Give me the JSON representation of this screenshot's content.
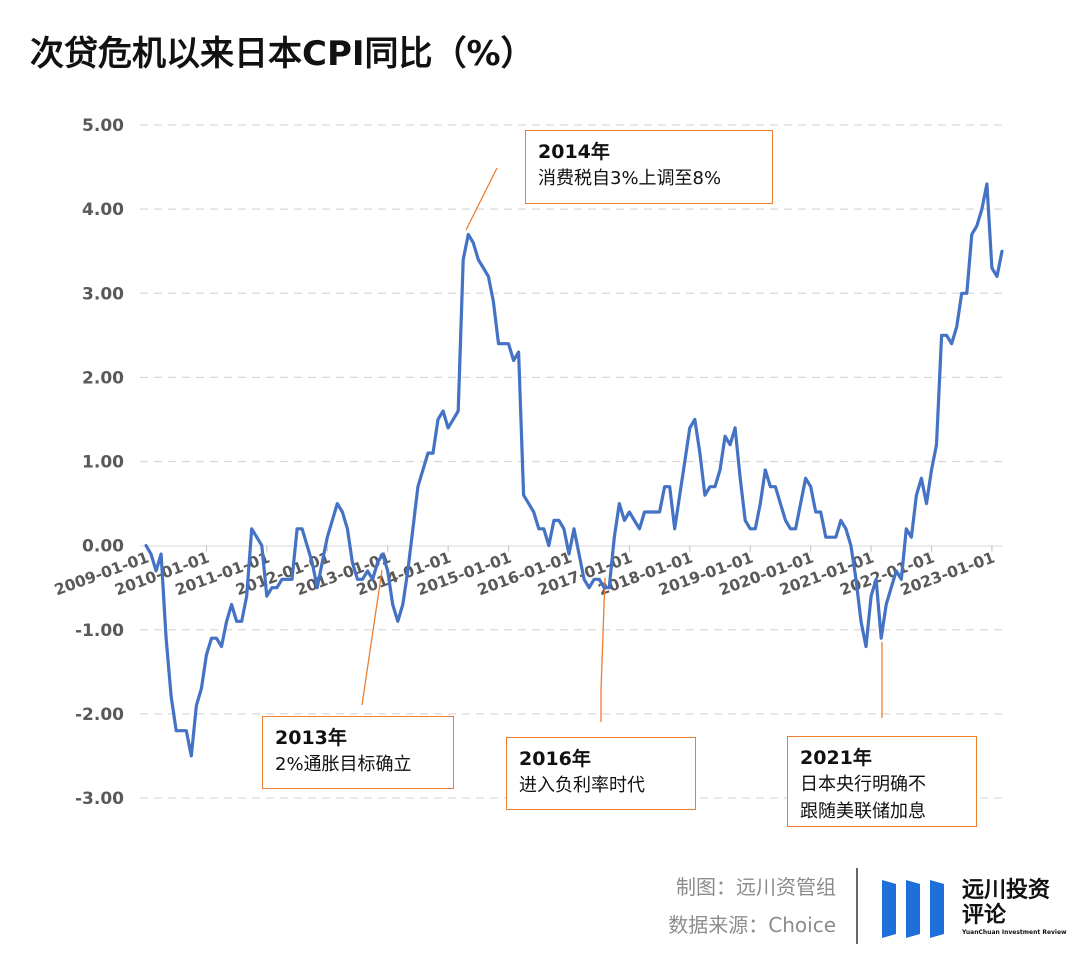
{
  "title": "次贷危机以来日本CPI同比（%）",
  "chart_data": {
    "type": "line",
    "title": "次贷危机以来日本CPI同比（%）",
    "xlabel": "",
    "ylabel": "",
    "ylim": [
      -3.0,
      5.0
    ],
    "y_ticks": [
      "5.00",
      "4.00",
      "3.00",
      "2.00",
      "1.00",
      "0.00",
      "-1.00",
      "-2.00",
      "-3.00"
    ],
    "x_ticks": [
      "2009-01-01",
      "2010-01-01",
      "2011-01-01",
      "2012-01-01",
      "2013-01-01",
      "2014-01-01",
      "2015-01-01",
      "2016-01-01",
      "2017-01-01",
      "2018-01-01",
      "2019-01-01",
      "2020-01-01",
      "2021-01-01",
      "2022-01-01",
      "2023-01-01"
    ],
    "x_start": "2009-01",
    "frequency": "monthly",
    "grid": "horizontal dashed",
    "legend": "none",
    "color": "#4472c4",
    "series": [
      {
        "name": "",
        "values": [
          0.0,
          -0.1,
          -0.3,
          -0.1,
          -1.1,
          -1.8,
          -2.2,
          -2.2,
          -2.2,
          -2.5,
          -1.9,
          -1.7,
          -1.3,
          -1.1,
          -1.1,
          -1.2,
          -0.9,
          -0.7,
          -0.9,
          -0.9,
          -0.6,
          0.2,
          0.1,
          0.0,
          -0.6,
          -0.5,
          -0.5,
          -0.4,
          -0.4,
          -0.4,
          0.2,
          0.2,
          0.0,
          -0.2,
          -0.5,
          -0.2,
          0.1,
          0.3,
          0.5,
          0.4,
          0.2,
          -0.2,
          -0.4,
          -0.4,
          -0.3,
          -0.4,
          -0.2,
          -0.1,
          -0.3,
          -0.7,
          -0.9,
          -0.7,
          -0.3,
          0.2,
          0.7,
          0.9,
          1.1,
          1.1,
          1.5,
          1.6,
          1.4,
          1.5,
          1.6,
          3.4,
          3.7,
          3.6,
          3.4,
          3.3,
          3.2,
          2.9,
          2.4,
          2.4,
          2.4,
          2.2,
          2.3,
          0.6,
          0.5,
          0.4,
          0.2,
          0.2,
          0.0,
          0.3,
          0.3,
          0.2,
          -0.1,
          0.2,
          -0.1,
          -0.4,
          -0.5,
          -0.4,
          -0.4,
          -0.5,
          -0.5,
          0.1,
          0.5,
          0.3,
          0.4,
          0.3,
          0.2,
          0.4,
          0.4,
          0.4,
          0.4,
          0.7,
          0.7,
          0.2,
          0.6,
          1.0,
          1.4,
          1.5,
          1.1,
          0.6,
          0.7,
          0.7,
          0.9,
          1.3,
          1.2,
          1.4,
          0.8,
          0.3,
          0.2,
          0.2,
          0.5,
          0.9,
          0.7,
          0.7,
          0.5,
          0.3,
          0.2,
          0.2,
          0.5,
          0.8,
          0.7,
          0.4,
          0.4,
          0.1,
          0.1,
          0.1,
          0.3,
          0.2,
          0.0,
          -0.4,
          -0.9,
          -1.2,
          -0.6,
          -0.4,
          -1.1,
          -0.7,
          -0.5,
          -0.3,
          -0.4,
          0.2,
          0.1,
          0.6,
          0.8,
          0.5,
          0.9,
          1.2,
          2.5,
          2.5,
          2.4,
          2.6,
          3.0,
          3.0,
          3.7,
          3.8,
          4.0,
          4.3,
          3.3,
          3.2,
          3.5
        ]
      }
    ]
  },
  "annotations": [
    {
      "year": "2014年",
      "text": "消费税自3%上调至8%"
    },
    {
      "year": "2013年",
      "text": "2%通胀目标确立"
    },
    {
      "year": "2016年",
      "text": "进入负利率时代"
    },
    {
      "year": "2021年",
      "text": "日本央行明确不\n跟随美联储加息"
    }
  ],
  "credit": {
    "maker": "制图：远川资管组",
    "source": "数据来源：Choice"
  },
  "logo": {
    "name_cn": "远川投资评论",
    "name_en": "YuanChuan Investment Review",
    "color": "#1e6fd9"
  }
}
